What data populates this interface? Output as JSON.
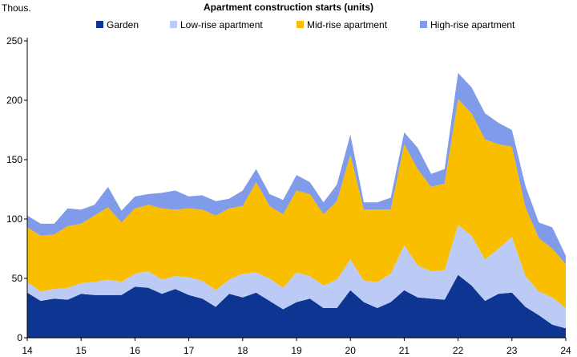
{
  "chart_data": {
    "type": "area",
    "stacked": true,
    "title": "Apartment construction starts (units)",
    "ylabel": "Thous.",
    "xlabel": "",
    "ylim": [
      0,
      250
    ],
    "yticks": [
      0,
      50,
      100,
      150,
      200,
      250
    ],
    "xlim": [
      2014,
      2024
    ],
    "xticks": [
      {
        "value": 2014,
        "label": "14"
      },
      {
        "value": 2015,
        "label": "15"
      },
      {
        "value": 2016,
        "label": "16"
      },
      {
        "value": 2017,
        "label": "17"
      },
      {
        "value": 2018,
        "label": "18"
      },
      {
        "value": 2019,
        "label": "19"
      },
      {
        "value": 2020,
        "label": "20"
      },
      {
        "value": 2021,
        "label": "21"
      },
      {
        "value": 2022,
        "label": "22"
      },
      {
        "value": 2023,
        "label": "23"
      },
      {
        "value": 2024,
        "label": "24"
      }
    ],
    "grid": false,
    "legend_position": "top",
    "x": [
      2014.0,
      2014.25,
      2014.5,
      2014.75,
      2015.0,
      2015.25,
      2015.5,
      2015.75,
      2016.0,
      2016.25,
      2016.5,
      2016.75,
      2017.0,
      2017.25,
      2017.5,
      2017.75,
      2018.0,
      2018.25,
      2018.5,
      2018.75,
      2019.0,
      2019.25,
      2019.5,
      2019.75,
      2020.0,
      2020.25,
      2020.5,
      2020.75,
      2021.0,
      2021.25,
      2021.5,
      2021.75,
      2022.0,
      2022.25,
      2022.5,
      2022.75,
      2023.0,
      2023.25,
      2023.5,
      2023.75,
      2024.0
    ],
    "series": [
      {
        "name": "Garden",
        "color": "#0d3591",
        "values": [
          38,
          31,
          33,
          32,
          37,
          36,
          36,
          36,
          43,
          42,
          37,
          41,
          36,
          33,
          26,
          37,
          34,
          38,
          31,
          24,
          30,
          33,
          25,
          25,
          40,
          30,
          25,
          30,
          40,
          34,
          33,
          32,
          53,
          44,
          31,
          37,
          38,
          26,
          19,
          11,
          8
        ]
      },
      {
        "name": "Low-rise apartment",
        "color": "#bccbf5",
        "values": [
          9,
          8,
          8,
          10,
          9,
          11,
          13,
          11,
          11,
          14,
          12,
          11,
          15,
          15,
          14,
          12,
          20,
          17,
          19,
          18,
          25,
          19,
          19,
          24,
          26,
          18,
          22,
          24,
          38,
          27,
          23,
          25,
          42,
          42,
          35,
          38,
          47,
          26,
          20,
          23,
          17
        ]
      },
      {
        "name": "Mid-rise apartment",
        "color": "#fabe00",
        "values": [
          46,
          47,
          46,
          52,
          50,
          56,
          61,
          50,
          55,
          56,
          60,
          56,
          58,
          60,
          63,
          60,
          57,
          76,
          61,
          62,
          69,
          69,
          60,
          66,
          88,
          60,
          61,
          54,
          85,
          81,
          71,
          73,
          106,
          103,
          101,
          88,
          76,
          58,
          45,
          41,
          37
        ]
      },
      {
        "name": "High-rise apartment",
        "color": "#7f9bea",
        "values": [
          10,
          10,
          9,
          15,
          12,
          9,
          17,
          10,
          10,
          9,
          13,
          16,
          10,
          12,
          12,
          8,
          13,
          11,
          10,
          12,
          13,
          10,
          10,
          14,
          17,
          6,
          6,
          10,
          10,
          18,
          11,
          12,
          22,
          22,
          22,
          18,
          14,
          18,
          13,
          18,
          7
        ]
      }
    ]
  }
}
